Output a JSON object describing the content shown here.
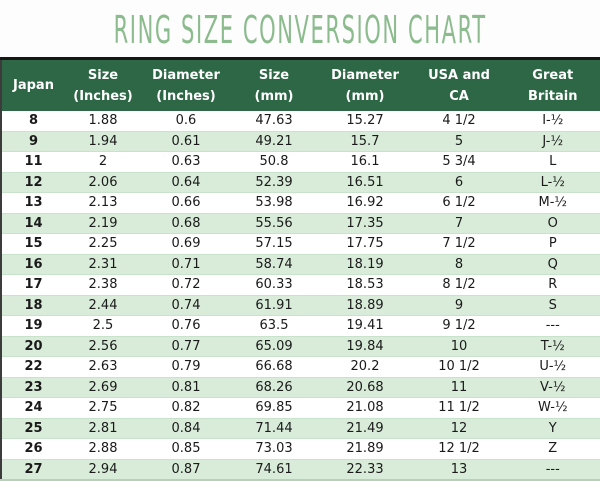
{
  "title": "RING SIZE CONVERSION CHART",
  "header": {
    "cells": [
      {
        "line1": "Japan",
        "line2": ""
      },
      {
        "line1": "Size",
        "line2": "(Inches)"
      },
      {
        "line1": "Diameter",
        "line2": "(Inches)"
      },
      {
        "line1": "Size",
        "line2": "(mm)"
      },
      {
        "line1": "Diameter",
        "line2": "(mm)"
      },
      {
        "line1": "USA and",
        "line2": "CA"
      },
      {
        "line1": "Great",
        "line2": "Britain"
      }
    ]
  },
  "chart_data": {
    "type": "table",
    "title": "RING SIZE CONVERSION CHART",
    "columns": [
      "Japan",
      "Size (Inches)",
      "Diameter (Inches)",
      "Size (mm)",
      "Diameter (mm)",
      "USA and CA",
      "Great Britain"
    ],
    "rows": [
      [
        "8",
        "1.88",
        "0.6",
        "47.63",
        "15.27",
        "4 1/2",
        "I-½"
      ],
      [
        "9",
        "1.94",
        "0.61",
        "49.21",
        "15.7",
        "5",
        "J-½"
      ],
      [
        "11",
        "2",
        "0.63",
        "50.8",
        "16.1",
        "5 3/4",
        "L"
      ],
      [
        "12",
        "2.06",
        "0.64",
        "52.39",
        "16.51",
        "6",
        "L-½"
      ],
      [
        "13",
        "2.13",
        "0.66",
        "53.98",
        "16.92",
        "6 1/2",
        "M-½"
      ],
      [
        "14",
        "2.19",
        "0.68",
        "55.56",
        "17.35",
        "7",
        "O"
      ],
      [
        "15",
        "2.25",
        "0.69",
        "57.15",
        "17.75",
        "7 1/2",
        "P"
      ],
      [
        "16",
        "2.31",
        "0.71",
        "58.74",
        "18.19",
        "8",
        "Q"
      ],
      [
        "17",
        "2.38",
        "0.72",
        "60.33",
        "18.53",
        "8 1/2",
        "R"
      ],
      [
        "18",
        "2.44",
        "0.74",
        "61.91",
        "18.89",
        "9",
        "S"
      ],
      [
        "19",
        "2.5",
        "0.76",
        "63.5",
        "19.41",
        "9 1/2",
        "---"
      ],
      [
        "20",
        "2.56",
        "0.77",
        "65.09",
        "19.84",
        "10",
        "T-½"
      ],
      [
        "22",
        "2.63",
        "0.79",
        "66.68",
        "20.2",
        "10 1/2",
        "U-½"
      ],
      [
        "23",
        "2.69",
        "0.81",
        "68.26",
        "20.68",
        "11",
        "V-½"
      ],
      [
        "24",
        "2.75",
        "0.82",
        "69.85",
        "21.08",
        "11 1/2",
        "W-½"
      ],
      [
        "25",
        "2.81",
        "0.84",
        "71.44",
        "21.49",
        "12",
        "Y"
      ],
      [
        "26",
        "2.88",
        "0.85",
        "73.03",
        "21.89",
        "12 1/2",
        "Z"
      ],
      [
        "27",
        "2.94",
        "0.87",
        "74.61",
        "22.33",
        "13",
        "---"
      ]
    ]
  },
  "colors": {
    "header_bg": "#2d6745",
    "header_text": "#ffffff",
    "row_alt_bg": "#d9ecd9",
    "title_green": "#8cbb8e",
    "body_text": "#1a1a1a",
    "top_border": "#161616"
  }
}
